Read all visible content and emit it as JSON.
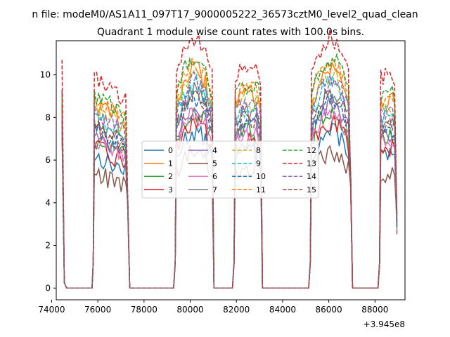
{
  "chart_data": {
    "type": "line",
    "suptitle": "n file: modeM0/AS1A11_097T17_9000005222_36573cztM0_level2_quad_clean",
    "title": "Quadrant 1 module wise count rates with 100.0s bins.",
    "xlabel": "",
    "ylabel": "",
    "x_offset_label": "+3.945e8",
    "xlim": [
      74200,
      89300
    ],
    "ylim": [
      -0.55,
      11.6
    ],
    "x_ticks": [
      74000,
      76000,
      78000,
      80000,
      82000,
      84000,
      86000,
      88000
    ],
    "x_tick_labels": [
      "74000",
      "76000",
      "78000",
      "80000",
      "82000",
      "84000",
      "86000",
      "88000"
    ],
    "y_ticks": [
      0,
      2,
      4,
      6,
      8,
      10
    ],
    "y_tick_labels": [
      "0",
      "2",
      "4",
      "6",
      "8",
      "10"
    ],
    "grid": false,
    "legend": {
      "placement": "center",
      "columns": 4
    },
    "series": [
      {
        "name": "0",
        "color": "#1f77b4",
        "dashed": false,
        "level": 6.2
      },
      {
        "name": "1",
        "color": "#ff7f0e",
        "dashed": false,
        "level": 8.7
      },
      {
        "name": "2",
        "color": "#2ca02c",
        "dashed": false,
        "level": 7.0
      },
      {
        "name": "3",
        "color": "#d62728",
        "dashed": false,
        "level": 6.6
      },
      {
        "name": "4",
        "color": "#9467bd",
        "dashed": false,
        "level": 7.2
      },
      {
        "name": "5",
        "color": "#8c564b",
        "dashed": false,
        "level": 5.4
      },
      {
        "name": "6",
        "color": "#e377c2",
        "dashed": false,
        "level": 6.9
      },
      {
        "name": "7",
        "color": "#7f7f7f",
        "dashed": false,
        "level": 7.8
      },
      {
        "name": "8",
        "color": "#bcbd22",
        "dashed": true,
        "level": 8.4
      },
      {
        "name": "9",
        "color": "#17becf",
        "dashed": true,
        "level": 8.1
      },
      {
        "name": "10",
        "color": "#1f77b4",
        "dashed": true,
        "level": 7.5
      },
      {
        "name": "11",
        "color": "#ff7f0e",
        "dashed": true,
        "level": 8.9
      },
      {
        "name": "12",
        "color": "#2ca02c",
        "dashed": true,
        "level": 9.1
      },
      {
        "name": "13",
        "color": "#d62728",
        "dashed": true,
        "level": 9.9
      },
      {
        "name": "14",
        "color": "#9467bd",
        "dashed": true,
        "level": 8.2
      },
      {
        "name": "15",
        "color": "#8c564b",
        "dashed": true,
        "level": 7.6
      }
    ],
    "segments": [
      {
        "x_start": 74450,
        "x_end": 74550,
        "x_zero_end": 75850
      },
      {
        "x_start": 75850,
        "x_end": 77300,
        "x_zero_end": 79400
      },
      {
        "x_start": 79400,
        "x_end": 80950,
        "x_zero_end": 81950
      },
      {
        "x_start": 81950,
        "x_end": 83050,
        "x_zero_end": 85250
      },
      {
        "x_start": 85250,
        "x_end": 86950,
        "x_zero_end": 88250
      },
      {
        "x_start": 88250,
        "x_end": 88950,
        "x_zero_end": 88950
      }
    ]
  }
}
